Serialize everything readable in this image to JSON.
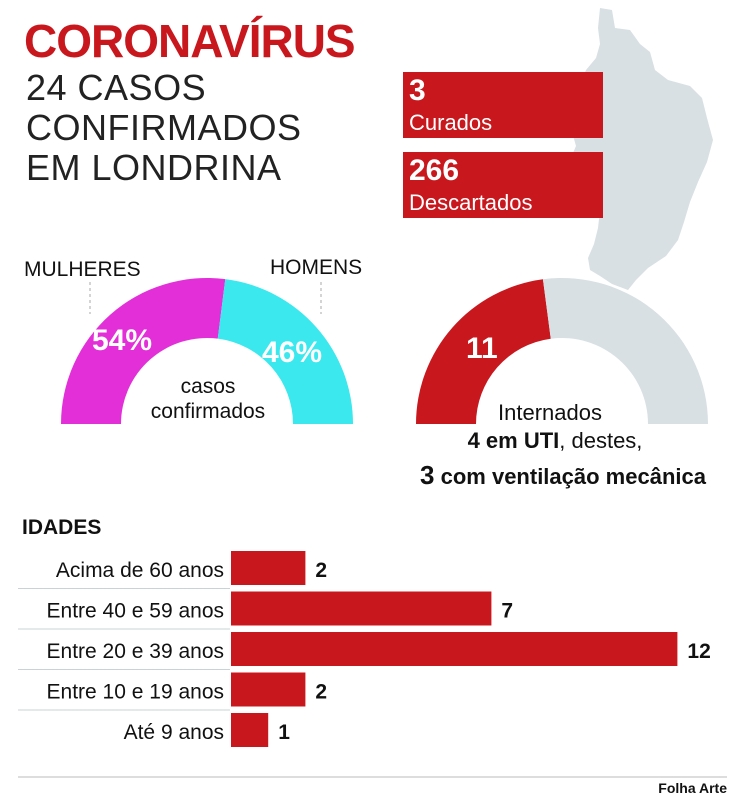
{
  "title": "CORONAVÍRUS",
  "subtitle_lines": [
    "24 CASOS",
    "CONFIRMADOS",
    "EM LONDRINA"
  ],
  "stats": [
    {
      "value": "3",
      "label": "Curados"
    },
    {
      "value": "266",
      "label": "Descartados"
    }
  ],
  "gender": {
    "women_label": "MULHERES",
    "men_label": "HOMENS",
    "women_pct_text": "54%",
    "men_pct_text": "46%",
    "women_share": 0.54,
    "men_share": 0.46,
    "caption_lines": [
      "casos",
      "confirmados"
    ],
    "women_color": "#e22fd8",
    "men_color": "#3ae8ee"
  },
  "hospital": {
    "interned_value": 11,
    "interned_text": "11",
    "caption": "Internados",
    "uti_bold": "4 em UTI",
    "uti_rest": ", destes,",
    "vent_num": "3",
    "vent_text": " com ventilação mecânica",
    "interned_color": "#c8181e",
    "rest_color": "#d8e0e3"
  },
  "chart_data": {
    "type": "bar",
    "orientation": "horizontal",
    "title": "IDADES",
    "categories": [
      "Acima de 60 anos",
      "Entre 40 e 59 anos",
      "Entre 20 e 39 anos",
      "Entre 10 e 19 anos",
      "Até 9 anos"
    ],
    "values": [
      2,
      7,
      12,
      2,
      1
    ],
    "bar_color": "#c8181e"
  },
  "source": "Folha Arte",
  "colors": {
    "brand_red": "#c8181e",
    "map_gray": "#d8e0e3"
  }
}
